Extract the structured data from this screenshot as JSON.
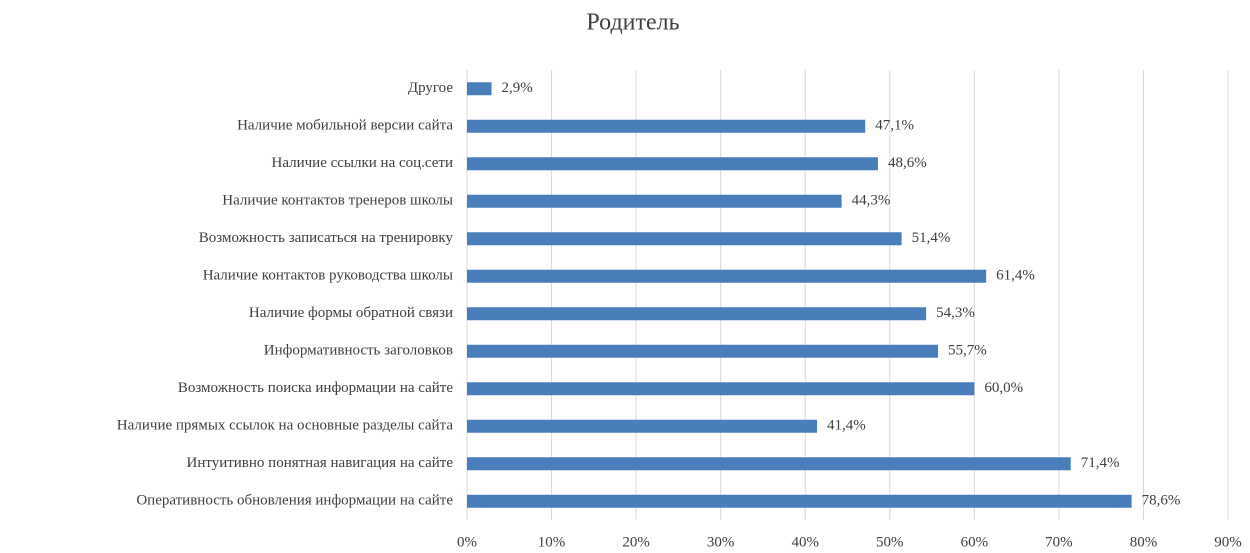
{
  "chart_data": {
    "type": "barh",
    "title": "Родитель",
    "categories": [
      "Другое",
      "Наличие мобильной версии сайта",
      "Наличие ссылки на соц.сети",
      "Наличие контактов тренеров школы",
      "Возможность записаться на тренировку",
      "Наличие контактов руководства школы",
      "Наличие формы обратной связи",
      "Информативность заголовков",
      "Возможность поиска информации на сайте",
      "Наличие прямых ссылок на основные разделы сайта",
      "Интуитивно понятная навигация на сайте",
      "Оперативность обновления информации на сайте"
    ],
    "values": [
      2.9,
      47.1,
      48.6,
      44.3,
      51.4,
      61.4,
      54.3,
      55.7,
      60.0,
      41.4,
      71.4,
      78.6
    ],
    "value_labels": [
      "2,9%",
      "47,1%",
      "48,6%",
      "44,3%",
      "51,4%",
      "61,4%",
      "54,3%",
      "55,7%",
      "60,0%",
      "41,4%",
      "71,4%",
      "78,6%"
    ],
    "color": "#4a7ebb",
    "xlim": [
      0,
      90
    ],
    "xticks": [
      {
        "value": 0,
        "label": "0%"
      },
      {
        "value": 10,
        "label": "10%"
      },
      {
        "value": 20,
        "label": "20%"
      },
      {
        "value": 30,
        "label": "30%"
      },
      {
        "value": 40,
        "label": "40%"
      },
      {
        "value": 50,
        "label": "50%"
      },
      {
        "value": 60,
        "label": "60%"
      },
      {
        "value": 70,
        "label": "70%"
      },
      {
        "value": 80,
        "label": "80%"
      },
      {
        "value": 90,
        "label": "90%"
      }
    ],
    "grid": true
  }
}
